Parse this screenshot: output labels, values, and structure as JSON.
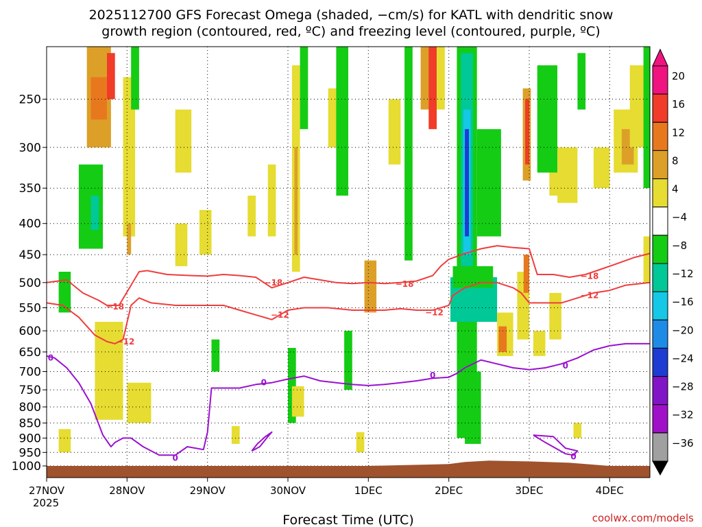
{
  "title_line1": "2025112700 GFS Forecast Omega (shaded, −cm/s) for KATL with dendritic snow",
  "title_line2": "growth region (contoured, red, ºC) and freezing level (contoured, purple, ºC)",
  "xlabel": "Forecast Time (UTC)",
  "credit": "coolwx.com/models",
  "year_label": "2025",
  "chart_data": {
    "type": "heatmap",
    "title": "2025112700 GFS Forecast Omega (shaded, −cm/s) for KATL with dendritic snow growth region (contoured, red, ºC) and freezing level (contoured, purple, ºC)",
    "xlabel": "Forecast Time (UTC)",
    "ylabel": "",
    "x_unit": "days since 2025-11-27 00Z",
    "xlim": [
      0,
      7.5
    ],
    "ylim": [
      1000,
      200
    ],
    "x_ticks": [
      {
        "x": 0,
        "label": "27NOV"
      },
      {
        "x": 1,
        "label": "28NOV"
      },
      {
        "x": 2,
        "label": "29NOV"
      },
      {
        "x": 3,
        "label": "30NOV"
      },
      {
        "x": 4,
        "label": "1DEC"
      },
      {
        "x": 5,
        "label": "2DEC"
      },
      {
        "x": 6,
        "label": "3DEC"
      },
      {
        "x": 7,
        "label": "4DEC"
      }
    ],
    "y_ticks": [
      250,
      300,
      350,
      400,
      450,
      500,
      550,
      600,
      650,
      700,
      750,
      800,
      850,
      900,
      950,
      1000
    ],
    "grid": true,
    "colorbar": {
      "labels": [
        "20",
        "16",
        "12",
        "8",
        "4",
        "−4",
        "−8",
        "−12",
        "−16",
        "−20",
        "−24",
        "−28",
        "−32",
        "−36"
      ],
      "colors": [
        "#f01480",
        "#f03c28",
        "#e8781e",
        "#dca028",
        "#e6dc32",
        "#ffffff",
        "#14cc14",
        "#00c896",
        "#14c8e6",
        "#1e8ce6",
        "#1e3cd2",
        "#8214c8",
        "#a010c8",
        "#a0a0a0"
      ],
      "placement": "right"
    },
    "omega_cells": [
      {
        "x0": 0.5,
        "x1": 0.8,
        "p0": 200,
        "p1": 300,
        "v": 8
      },
      {
        "x0": 0.55,
        "x1": 0.75,
        "p0": 230,
        "p1": 270,
        "v": 12
      },
      {
        "x0": 0.75,
        "x1": 0.85,
        "p0": 210,
        "p1": 250,
        "v": 16
      },
      {
        "x0": 0.4,
        "x1": 0.7,
        "p0": 320,
        "p1": 440,
        "v": -8
      },
      {
        "x0": 0.55,
        "x1": 0.65,
        "p0": 360,
        "p1": 410,
        "v": -12
      },
      {
        "x0": 0.15,
        "x1": 0.3,
        "p0": 480,
        "p1": 560,
        "v": -8
      },
      {
        "x0": 0.95,
        "x1": 1.1,
        "p0": 230,
        "p1": 420,
        "v": 4
      },
      {
        "x0": 1.0,
        "x1": 1.05,
        "p0": 400,
        "p1": 450,
        "v": 8
      },
      {
        "x0": 0.6,
        "x1": 0.95,
        "p0": 580,
        "p1": 840,
        "v": 4
      },
      {
        "x0": 0.15,
        "x1": 0.3,
        "p0": 870,
        "p1": 950,
        "v": 4
      },
      {
        "x0": 1.0,
        "x1": 1.3,
        "p0": 730,
        "p1": 850,
        "v": 4
      },
      {
        "x0": 1.05,
        "x1": 1.15,
        "p0": 200,
        "p1": 260,
        "v": -8
      },
      {
        "x0": 1.6,
        "x1": 1.8,
        "p0": 260,
        "p1": 330,
        "v": 4
      },
      {
        "x0": 1.6,
        "x1": 1.75,
        "p0": 400,
        "p1": 470,
        "v": 4
      },
      {
        "x0": 1.9,
        "x1": 2.05,
        "p0": 380,
        "p1": 450,
        "v": 4
      },
      {
        "x0": 2.05,
        "x1": 2.15,
        "p0": 620,
        "p1": 700,
        "v": -8
      },
      {
        "x0": 2.5,
        "x1": 2.6,
        "p0": 360,
        "p1": 420,
        "v": 4
      },
      {
        "x0": 2.75,
        "x1": 2.85,
        "p0": 320,
        "p1": 420,
        "v": 4
      },
      {
        "x0": 3.05,
        "x1": 3.15,
        "p0": 220,
        "p1": 480,
        "v": 4
      },
      {
        "x0": 3.08,
        "x1": 3.12,
        "p0": 300,
        "p1": 450,
        "v": 8
      },
      {
        "x0": 3.15,
        "x1": 3.25,
        "p0": 200,
        "p1": 280,
        "v": -8
      },
      {
        "x0": 3.0,
        "x1": 3.1,
        "p0": 640,
        "p1": 850,
        "v": -8
      },
      {
        "x0": 3.05,
        "x1": 3.2,
        "p0": 740,
        "p1": 830,
        "v": 4
      },
      {
        "x0": 3.5,
        "x1": 3.75,
        "p0": 240,
        "p1": 300,
        "v": 4
      },
      {
        "x0": 3.6,
        "x1": 3.75,
        "p0": 200,
        "p1": 360,
        "v": -8
      },
      {
        "x0": 3.95,
        "x1": 4.1,
        "p0": 460,
        "p1": 560,
        "v": 8
      },
      {
        "x0": 3.7,
        "x1": 3.8,
        "p0": 600,
        "p1": 750,
        "v": -8
      },
      {
        "x0": 4.25,
        "x1": 4.4,
        "p0": 250,
        "p1": 320,
        "v": 4
      },
      {
        "x0": 4.45,
        "x1": 4.55,
        "p0": 200,
        "p1": 460,
        "v": -8
      },
      {
        "x0": 4.65,
        "x1": 4.8,
        "p0": 200,
        "p1": 260,
        "v": 8
      },
      {
        "x0": 4.75,
        "x1": 4.85,
        "p0": 200,
        "p1": 280,
        "v": 16
      },
      {
        "x0": 4.85,
        "x1": 4.95,
        "p0": 200,
        "p1": 260,
        "v": 4
      },
      {
        "x0": 5.1,
        "x1": 5.35,
        "p0": 200,
        "p1": 900,
        "v": -8
      },
      {
        "x0": 5.15,
        "x1": 5.3,
        "p0": 210,
        "p1": 480,
        "v": -12
      },
      {
        "x0": 5.18,
        "x1": 5.27,
        "p0": 260,
        "p1": 450,
        "v": -16
      },
      {
        "x0": 5.2,
        "x1": 5.25,
        "p0": 280,
        "p1": 420,
        "v": -24
      },
      {
        "x0": 5.02,
        "x1": 5.6,
        "p0": 490,
        "p1": 580,
        "v": -12
      },
      {
        "x0": 5.05,
        "x1": 5.55,
        "p0": 470,
        "p1": 510,
        "v": -8
      },
      {
        "x0": 5.2,
        "x1": 5.4,
        "p0": 700,
        "p1": 920,
        "v": -8
      },
      {
        "x0": 5.35,
        "x1": 5.65,
        "p0": 280,
        "p1": 420,
        "v": -8
      },
      {
        "x0": 5.6,
        "x1": 5.8,
        "p0": 560,
        "p1": 660,
        "v": 4
      },
      {
        "x0": 5.62,
        "x1": 5.72,
        "p0": 590,
        "p1": 650,
        "v": 12
      },
      {
        "x0": 5.85,
        "x1": 6.0,
        "p0": 480,
        "p1": 620,
        "v": 4
      },
      {
        "x0": 5.92,
        "x1": 6.02,
        "p0": 240,
        "p1": 340,
        "v": 8
      },
      {
        "x0": 5.95,
        "x1": 6.0,
        "p0": 250,
        "p1": 320,
        "v": 16
      },
      {
        "x0": 5.93,
        "x1": 6.0,
        "p0": 450,
        "p1": 520,
        "v": 12
      },
      {
        "x0": 6.1,
        "x1": 6.35,
        "p0": 220,
        "p1": 330,
        "v": -8
      },
      {
        "x0": 6.25,
        "x1": 6.4,
        "p0": 330,
        "p1": 360,
        "v": 4
      },
      {
        "x0": 6.35,
        "x1": 6.6,
        "p0": 300,
        "p1": 370,
        "v": 4
      },
      {
        "x0": 6.6,
        "x1": 6.7,
        "p0": 210,
        "p1": 260,
        "v": -8
      },
      {
        "x0": 6.25,
        "x1": 6.4,
        "p0": 520,
        "p1": 620,
        "v": 4
      },
      {
        "x0": 6.05,
        "x1": 6.2,
        "p0": 600,
        "p1": 660,
        "v": 4
      },
      {
        "x0": 6.55,
        "x1": 6.65,
        "p0": 850,
        "p1": 900,
        "v": 4
      },
      {
        "x0": 6.8,
        "x1": 7.0,
        "p0": 300,
        "p1": 350,
        "v": 4
      },
      {
        "x0": 7.05,
        "x1": 7.35,
        "p0": 260,
        "p1": 330,
        "v": 4
      },
      {
        "x0": 7.15,
        "x1": 7.3,
        "p0": 280,
        "p1": 320,
        "v": 8
      },
      {
        "x0": 7.25,
        "x1": 7.45,
        "p0": 220,
        "p1": 300,
        "v": 4
      },
      {
        "x0": 7.42,
        "x1": 7.5,
        "p0": 200,
        "p1": 350,
        "v": -8
      },
      {
        "x0": 7.42,
        "x1": 7.5,
        "p0": 420,
        "p1": 500,
        "v": 4
      },
      {
        "x0": 3.85,
        "x1": 3.95,
        "p0": 880,
        "p1": 950,
        "v": 4
      },
      {
        "x0": 2.3,
        "x1": 2.4,
        "p0": 860,
        "p1": 920,
        "v": 4
      }
    ],
    "series": [
      {
        "name": "-18",
        "label": "−18",
        "color": "#f03c3c",
        "x": [
          0,
          0.25,
          0.45,
          0.65,
          0.75,
          0.9,
          1.05,
          1.15,
          1.25,
          1.5,
          1.8,
          2.0,
          2.2,
          2.4,
          2.6,
          2.8,
          2.9,
          3.0,
          3.2,
          3.4,
          3.6,
          3.8,
          4.0,
          4.2,
          4.4,
          4.6,
          4.8,
          4.9,
          5.0,
          5.2,
          5.4,
          5.6,
          5.8,
          6.0,
          6.1,
          6.3,
          6.5,
          6.7,
          6.9,
          7.1,
          7.3,
          7.5
        ],
        "y": [
          500,
          495,
          520,
          535,
          545,
          545,
          505,
          480,
          478,
          485,
          487,
          488,
          485,
          487,
          490,
          510,
          505,
          500,
          490,
          495,
          500,
          502,
          500,
          502,
          500,
          497,
          487,
          470,
          458,
          448,
          440,
          435,
          438,
          440,
          485,
          485,
          490,
          485,
          475,
          465,
          455,
          448
        ]
      },
      {
        "name": "-12",
        "label": "−12",
        "color": "#f03c3c",
        "x": [
          0,
          0.2,
          0.4,
          0.6,
          0.75,
          0.85,
          0.95,
          1.05,
          1.15,
          1.3,
          1.6,
          2.0,
          2.2,
          2.4,
          2.6,
          2.8,
          2.9,
          3.0,
          3.2,
          3.5,
          3.8,
          4.0,
          4.2,
          4.4,
          4.6,
          4.8,
          5.0,
          5.05,
          5.2,
          5.4,
          5.6,
          5.8,
          5.9,
          6.0,
          6.2,
          6.4,
          6.6,
          6.8,
          7.0,
          7.2,
          7.5
        ],
        "y": [
          540,
          545,
          570,
          610,
          625,
          630,
          620,
          545,
          530,
          540,
          545,
          545,
          545,
          555,
          565,
          575,
          565,
          555,
          550,
          550,
          555,
          555,
          555,
          552,
          555,
          555,
          545,
          525,
          510,
          500,
          500,
          510,
          520,
          540,
          540,
          540,
          530,
          520,
          515,
          505,
          500
        ]
      },
      {
        "name": "0",
        "label": "0",
        "color": "#9b10d0",
        "x": [
          0,
          0.1,
          0.25,
          0.4,
          0.55,
          0.7,
          0.8,
          0.85,
          0.95,
          1.05,
          1.2,
          1.4,
          1.6,
          1.75,
          1.95,
          2.0,
          2.05,
          2.2,
          2.4,
          2.6,
          2.8,
          3.0,
          3.2,
          3.4,
          3.6,
          3.8,
          4.0,
          4.2,
          4.4,
          4.6,
          4.8,
          5.0,
          5.1,
          5.2,
          5.4,
          5.6,
          5.8,
          6.0,
          6.2,
          6.4,
          6.6,
          6.8,
          7.0,
          7.2,
          7.5
        ],
        "y": [
          660,
          665,
          690,
          730,
          790,
          890,
          930,
          915,
          900,
          900,
          930,
          960,
          960,
          930,
          940,
          880,
          745,
          745,
          745,
          735,
          730,
          720,
          712,
          725,
          730,
          735,
          738,
          735,
          730,
          725,
          718,
          715,
          705,
          690,
          670,
          680,
          690,
          695,
          690,
          680,
          665,
          645,
          635,
          630,
          630
        ]
      },
      {
        "name": "0-blob-a",
        "label": "",
        "color": "#9b10d0",
        "x": [
          2.55,
          2.62,
          2.72,
          2.8,
          2.75,
          2.65,
          2.55
        ],
        "y": [
          945,
          920,
          895,
          880,
          895,
          930,
          945
        ]
      },
      {
        "name": "0-blob-b",
        "label": "",
        "color": "#9b10d0",
        "x": [
          6.05,
          6.3,
          6.45,
          6.6,
          6.55,
          6.45,
          6.2,
          6.05
        ],
        "y": [
          890,
          895,
          935,
          945,
          960,
          955,
          915,
          890
        ]
      }
    ],
    "series_labels": [
      {
        "text": "−18",
        "x": 0.85,
        "p": 548
      },
      {
        "text": "−18",
        "x": 2.82,
        "p": 500
      },
      {
        "text": "−18",
        "x": 4.45,
        "p": 503
      },
      {
        "text": "−18",
        "x": 6.75,
        "p": 488
      },
      {
        "text": "−12",
        "x": 0.98,
        "p": 625
      },
      {
        "text": "−12",
        "x": 2.9,
        "p": 565
      },
      {
        "text": "−12",
        "x": 4.82,
        "p": 560
      },
      {
        "text": "−12",
        "x": 6.75,
        "p": 525
      },
      {
        "text": "0",
        "x": 1.6,
        "p": 970
      },
      {
        "text": "0",
        "x": 2.7,
        "p": 730
      },
      {
        "text": "0",
        "x": 4.8,
        "p": 710
      },
      {
        "text": "0",
        "x": 6.45,
        "p": 685
      },
      {
        "text": "0",
        "x": 6.55,
        "p": 965
      },
      {
        "text": "0",
        "x": 0.05,
        "p": 665
      }
    ],
    "terrain": {
      "color": "#a0522d",
      "x": [
        0,
        1,
        2,
        3,
        4,
        5,
        5.2,
        5.5,
        6,
        6.5,
        7,
        7.5
      ],
      "p": [
        1000,
        1000,
        1000,
        1000,
        1000,
        993,
        985,
        980,
        983,
        988,
        1000,
        1000
      ]
    }
  }
}
